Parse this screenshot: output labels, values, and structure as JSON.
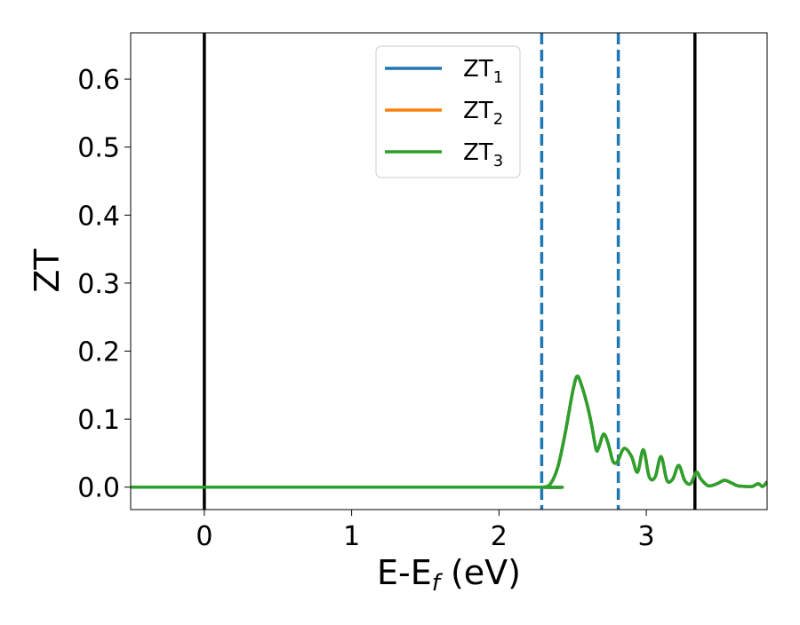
{
  "chart_data": {
    "type": "line",
    "title": "",
    "xlabel": {
      "main": "E-E",
      "sub": "f",
      "tail": " (eV)"
    },
    "ylabel": "ZT",
    "xlim": [
      -0.5,
      3.82
    ],
    "ylim": [
      -0.033,
      0.668
    ],
    "xticks": [
      0,
      1,
      2,
      3
    ],
    "yticks": [
      0.0,
      0.1,
      0.2,
      0.3,
      0.4,
      0.5,
      0.6
    ],
    "xtick_labels": [
      "0",
      "1",
      "2",
      "3"
    ],
    "ytick_labels": [
      "0.0",
      "0.1",
      "0.2",
      "0.3",
      "0.4",
      "0.5",
      "0.6"
    ],
    "grid": false,
    "legend_position": "top-center",
    "vertical_lines": [
      {
        "x": 0.0,
        "style": "solid",
        "color": "#000000"
      },
      {
        "x": 3.33,
        "style": "solid",
        "color": "#000000"
      },
      {
        "x": 2.29,
        "style": "dashed",
        "color": "#1f77b4"
      },
      {
        "x": 2.81,
        "style": "dashed",
        "color": "#1f77b4"
      }
    ],
    "series": [
      {
        "name": "ZT",
        "sub": "1",
        "color": "#1f77b4",
        "x": [
          -0.5,
          2.2,
          2.3,
          2.35,
          2.4,
          2.45,
          2.5,
          2.53,
          2.56,
          2.6,
          2.63,
          2.66,
          2.68,
          2.71,
          2.74,
          2.77,
          2.79,
          2.81,
          2.85,
          2.9,
          2.94,
          2.98,
          3.02,
          3.06,
          3.1,
          3.14,
          3.18,
          3.22,
          3.26,
          3.3,
          3.34,
          3.37,
          3.42,
          3.48,
          3.53,
          3.58,
          3.62,
          3.68,
          3.72,
          3.76,
          3.79,
          3.82
        ],
        "y": [
          0.0,
          0.0,
          0.0,
          0.005,
          0.03,
          0.08,
          0.14,
          0.163,
          0.15,
          0.12,
          0.09,
          0.055,
          0.06,
          0.078,
          0.065,
          0.04,
          0.035,
          0.04,
          0.057,
          0.045,
          0.022,
          0.055,
          0.015,
          0.015,
          0.045,
          0.01,
          0.012,
          0.032,
          0.01,
          0.005,
          0.022,
          0.012,
          0.002,
          0.005,
          0.01,
          0.006,
          0.002,
          0.001,
          0.001,
          0.005,
          0.001,
          0.008
        ]
      },
      {
        "name": "ZT",
        "sub": "2",
        "color": "#ff7f0e",
        "x": [
          -0.5,
          2.2,
          2.3,
          2.35,
          2.4,
          2.45,
          2.5,
          2.53,
          2.56,
          2.6,
          2.63,
          2.66,
          2.68,
          2.71,
          2.74,
          2.77,
          2.79,
          2.81,
          2.85,
          2.9,
          2.94,
          2.98,
          3.02,
          3.06,
          3.1,
          3.14,
          3.18,
          3.22,
          3.26,
          3.3,
          3.34,
          3.37,
          3.42,
          3.48,
          3.53,
          3.58,
          3.62,
          3.68,
          3.72,
          3.76,
          3.79,
          3.82
        ],
        "y": [
          0.0,
          0.0,
          0.0,
          0.005,
          0.03,
          0.08,
          0.14,
          0.163,
          0.15,
          0.12,
          0.09,
          0.055,
          0.06,
          0.078,
          0.065,
          0.04,
          0.035,
          0.04,
          0.057,
          0.045,
          0.022,
          0.055,
          0.015,
          0.015,
          0.045,
          0.01,
          0.012,
          0.032,
          0.01,
          0.005,
          0.022,
          0.012,
          0.002,
          0.005,
          0.01,
          0.006,
          0.002,
          0.001,
          0.001,
          0.005,
          0.001,
          0.008
        ]
      },
      {
        "name": "ZT",
        "sub": "3",
        "color": "#2ca02c",
        "x": [
          -0.5,
          2.2,
          2.3,
          2.35,
          2.4,
          2.45,
          2.5,
          2.53,
          2.56,
          2.6,
          2.63,
          2.66,
          2.68,
          2.71,
          2.74,
          2.77,
          2.79,
          2.81,
          2.85,
          2.9,
          2.94,
          2.98,
          3.02,
          3.06,
          3.1,
          3.14,
          3.18,
          3.22,
          3.26,
          3.3,
          3.34,
          3.37,
          3.42,
          3.48,
          3.53,
          3.58,
          3.62,
          3.68,
          3.72,
          3.76,
          3.79,
          3.82
        ],
        "y": [
          0.0,
          0.0,
          0.0,
          0.005,
          0.03,
          0.08,
          0.14,
          0.163,
          0.15,
          0.12,
          0.09,
          0.055,
          0.06,
          0.078,
          0.065,
          0.04,
          0.035,
          0.04,
          0.057,
          0.045,
          0.022,
          0.055,
          0.015,
          0.015,
          0.045,
          0.01,
          0.012,
          0.032,
          0.01,
          0.005,
          0.022,
          0.012,
          0.002,
          0.005,
          0.01,
          0.006,
          0.002,
          0.001,
          0.001,
          0.005,
          0.001,
          0.008
        ]
      }
    ]
  }
}
